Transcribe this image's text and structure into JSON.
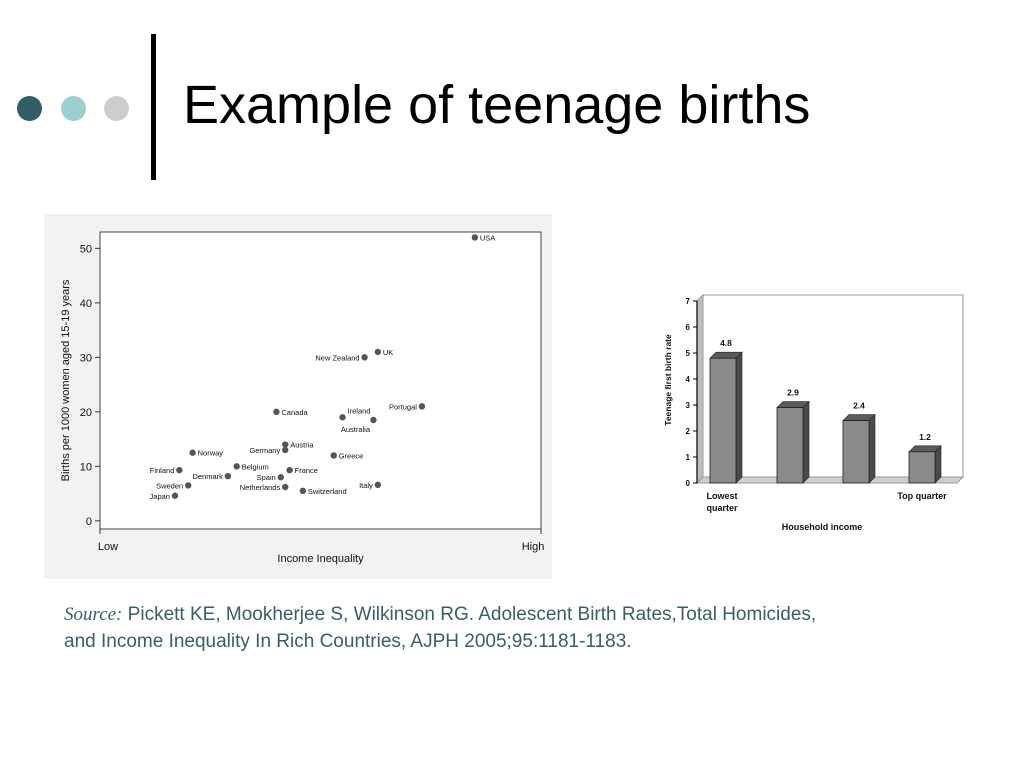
{
  "slide": {
    "title": "Example of teenage births",
    "bullet_colors": [
      "#2f5e63",
      "#9ccfd2",
      "#cccccc"
    ],
    "source_label": "Source:",
    "source_text": " Pickett KE, Mookherjee S, Wilkinson RG. Adolescent Birth Rates,Total Homicides, and Income Inequality In Rich Countries, AJPH 2005;95:1181-1183."
  },
  "chart_data": [
    {
      "type": "scatter",
      "xlabel": "Income Inequality",
      "ylabel": "Births per 1000 women aged 15-19 years",
      "x_tick_labels": [
        "Low",
        "High"
      ],
      "yticks": [
        0,
        10,
        20,
        30,
        40,
        50
      ],
      "xlim": [
        0,
        1
      ],
      "ylim": [
        -1.5,
        53
      ],
      "grid": false,
      "points": [
        {
          "label": "USA",
          "x": 0.85,
          "y": 52
        },
        {
          "label": "UK",
          "x": 0.63,
          "y": 31
        },
        {
          "label": "New Zealand",
          "x": 0.6,
          "y": 30
        },
        {
          "label": "Portugal",
          "x": 0.73,
          "y": 21
        },
        {
          "label": "Canada",
          "x": 0.4,
          "y": 20
        },
        {
          "label": "Ireland",
          "x": 0.55,
          "y": 19
        },
        {
          "label": "Australia",
          "x": 0.62,
          "y": 18.5
        },
        {
          "label": "Austria",
          "x": 0.42,
          "y": 14
        },
        {
          "label": "Germany",
          "x": 0.42,
          "y": 13
        },
        {
          "label": "Greece",
          "x": 0.53,
          "y": 12
        },
        {
          "label": "Norway",
          "x": 0.21,
          "y": 12.5
        },
        {
          "label": "Belgium",
          "x": 0.31,
          "y": 10
        },
        {
          "label": "France",
          "x": 0.43,
          "y": 9.3
        },
        {
          "label": "Finland",
          "x": 0.18,
          "y": 9.3
        },
        {
          "label": "Denmark",
          "x": 0.29,
          "y": 8.2
        },
        {
          "label": "Spain",
          "x": 0.41,
          "y": 8
        },
        {
          "label": "Sweden",
          "x": 0.2,
          "y": 6.5
        },
        {
          "label": "Netherlands",
          "x": 0.42,
          "y": 6.2
        },
        {
          "label": "Italy",
          "x": 0.63,
          "y": 6.6
        },
        {
          "label": "Switzerland",
          "x": 0.46,
          "y": 5.5
        },
        {
          "label": "Japan",
          "x": 0.17,
          "y": 4.6
        }
      ]
    },
    {
      "type": "bar",
      "categories": [
        "Lowest quarter",
        "",
        "",
        "Top quarter"
      ],
      "values": [
        4.8,
        2.9,
        2.4,
        1.2
      ],
      "data_labels": [
        "4.8",
        "2.9",
        "2.4",
        "1.2"
      ],
      "xlabel": "Household income",
      "ylabel": "Teenage first birth rate",
      "yticks": [
        0,
        1,
        2,
        3,
        4,
        5,
        6,
        7
      ],
      "ylim": [
        0,
        7
      ],
      "grid": false
    }
  ]
}
